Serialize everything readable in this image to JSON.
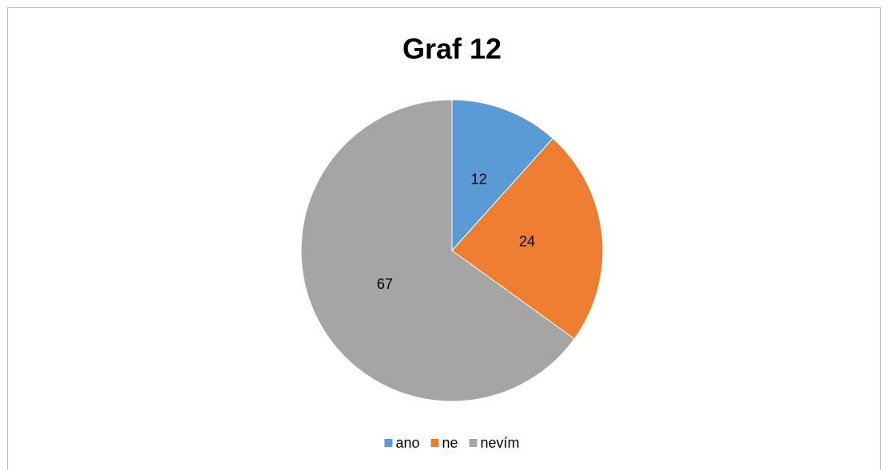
{
  "chart_data": {
    "type": "pie",
    "title": "Graf 12",
    "categories": [
      "ano",
      "ne",
      "nevím"
    ],
    "values": [
      12,
      24,
      67
    ],
    "colors": [
      "#5b9bd5",
      "#ed7d31",
      "#a5a5a5"
    ],
    "legend": "bottom"
  }
}
